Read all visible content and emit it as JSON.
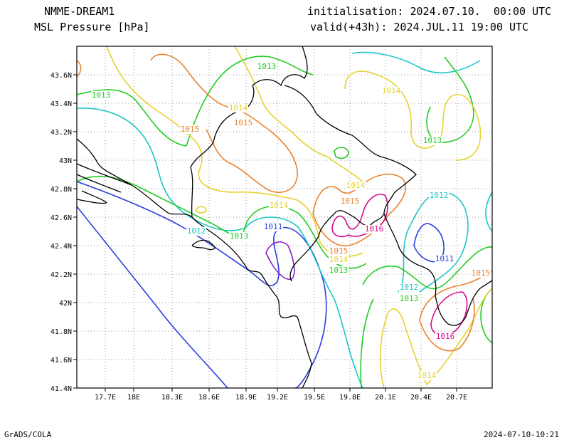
{
  "header": {
    "model": "NMME-DREAM1",
    "field": "MSL Pressure [hPa]",
    "initialisation": "initialisation: 2024.07.10.  00:00 UTC",
    "valid": "valid(+43h): 2024.JUL.11 19:00 UTC"
  },
  "footer": {
    "left": "GrADS/COLA",
    "right": "2024-07-10-10:21"
  },
  "axes": {
    "x_ticks": [
      "17.7E",
      "18E",
      "18.3E",
      "18.6E",
      "18.9E",
      "19.2E",
      "19.5E",
      "19.8E",
      "20.1E",
      "20.4E",
      "20.7E"
    ],
    "y_ticks": [
      "43.6N",
      "43.4N",
      "43.2N",
      "43N",
      "42.8N",
      "42.6N",
      "42.4N",
      "42.2N",
      "42N",
      "41.8N",
      "41.6N",
      "41.4N"
    ],
    "grid": "dotted"
  },
  "contour_colors": {
    "1011": "#2c3fe0",
    "1012": "#1cc6c6",
    "1013": "#22cc22",
    "1014": "#e6d230",
    "1015": "#e8832e",
    "1016": "#d40a8c",
    "1010": "#8a1fc8"
  },
  "contour_labels": [
    {
      "text": "1013",
      "level": "1013"
    },
    {
      "text": "1013",
      "level": "1013"
    },
    {
      "text": "1014",
      "level": "1014"
    },
    {
      "text": "1015",
      "level": "1015"
    },
    {
      "text": "1015",
      "level": "1015"
    },
    {
      "text": "1014",
      "level": "1014"
    },
    {
      "text": "1013",
      "level": "1013"
    },
    {
      "text": "1014",
      "level": "1014"
    },
    {
      "text": "1015",
      "level": "1015"
    },
    {
      "text": "1012",
      "level": "1012"
    },
    {
      "text": "1012",
      "level": "1012"
    },
    {
      "text": "1014",
      "level": "1014"
    },
    {
      "text": "1011",
      "level": "1011"
    },
    {
      "text": "1013",
      "level": "1013"
    },
    {
      "text": "1016",
      "level": "1016"
    },
    {
      "text": "1015",
      "level": "1015"
    },
    {
      "text": "1014",
      "level": "1014"
    },
    {
      "text": "1013",
      "level": "1013"
    },
    {
      "text": "1011",
      "level": "1011"
    },
    {
      "text": "1012",
      "level": "1012"
    },
    {
      "text": "1013",
      "level": "1013"
    },
    {
      "text": "1015",
      "level": "1015"
    },
    {
      "text": "1016",
      "level": "1016"
    },
    {
      "text": "1014",
      "level": "1014"
    }
  ]
}
